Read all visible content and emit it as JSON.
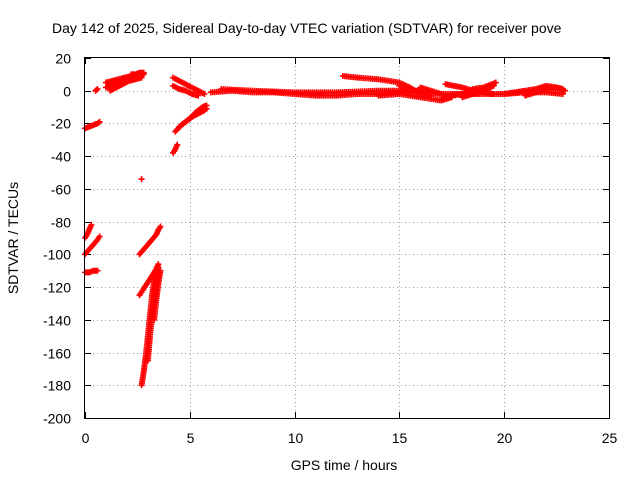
{
  "chart_data": {
    "type": "scatter",
    "title": "Day 142 of 2025, Sidereal Day-to-day VTEC variation (SDTVAR) for receiver pove",
    "xlabel": "GPS time / hours",
    "ylabel": "SDTVAR / TECUs",
    "xlim": [
      0,
      25
    ],
    "ylim": [
      -200,
      20
    ],
    "x_ticks": [
      0,
      5,
      10,
      15,
      20,
      25
    ],
    "y_ticks": [
      20,
      0,
      -20,
      -40,
      -60,
      -80,
      -100,
      -120,
      -140,
      -160,
      -180,
      -200
    ],
    "grid": true,
    "marker": "plus",
    "color": "#ff0000",
    "series": [
      {
        "segments": [
          [
            [
              0.0,
              -23
            ],
            [
              0.2,
              -22
            ],
            [
              0.4,
              -21
            ],
            [
              0.6,
              -20
            ],
            [
              0.7,
              -19
            ]
          ],
          [
            [
              0.0,
              -90
            ],
            [
              0.1,
              -88
            ],
            [
              0.2,
              -85
            ],
            [
              0.3,
              -82
            ]
          ],
          [
            [
              0.0,
              -100
            ],
            [
              0.2,
              -97
            ],
            [
              0.4,
              -94
            ],
            [
              0.6,
              -91
            ],
            [
              0.7,
              -89
            ]
          ],
          [
            [
              0.0,
              -111
            ],
            [
              0.2,
              -111
            ],
            [
              0.4,
              -110
            ],
            [
              0.6,
              -110
            ]
          ],
          [
            [
              0.5,
              0
            ],
            [
              0.6,
              1
            ]
          ],
          [
            [
              1.0,
              2
            ],
            [
              1.2,
              3
            ],
            [
              1.4,
              4
            ],
            [
              1.6,
              5
            ],
            [
              1.8,
              5
            ],
            [
              2.0,
              6
            ],
            [
              2.2,
              7
            ],
            [
              2.4,
              8
            ],
            [
              2.6,
              9
            ],
            [
              2.8,
              10
            ]
          ],
          [
            [
              1.0,
              5
            ],
            [
              1.3,
              6
            ],
            [
              1.6,
              7
            ],
            [
              1.9,
              8
            ],
            [
              2.2,
              9
            ],
            [
              2.5,
              10
            ],
            [
              2.8,
              11
            ]
          ],
          [
            [
              1.2,
              0
            ],
            [
              1.5,
              2
            ],
            [
              1.8,
              4
            ],
            [
              2.1,
              6
            ],
            [
              2.4,
              7
            ],
            [
              2.7,
              8
            ]
          ],
          [
            [
              2.2,
              10
            ],
            [
              2.4,
              10
            ],
            [
              2.6,
              11
            ],
            [
              2.8,
              11
            ]
          ],
          [
            [
              2.7,
              -54
            ]
          ],
          [
            [
              2.6,
              -100
            ],
            [
              2.8,
              -97
            ],
            [
              3.0,
              -94
            ],
            [
              3.2,
              -91
            ],
            [
              3.4,
              -88
            ],
            [
              3.5,
              -85
            ],
            [
              3.6,
              -83
            ]
          ],
          [
            [
              2.6,
              -125
            ],
            [
              2.8,
              -121
            ],
            [
              3.0,
              -117
            ],
            [
              3.2,
              -113
            ],
            [
              3.4,
              -109
            ],
            [
              3.5,
              -106
            ]
          ],
          [
            [
              2.7,
              -180
            ],
            [
              2.8,
              -172
            ],
            [
              2.9,
              -162
            ],
            [
              3.0,
              -150
            ],
            [
              3.1,
              -137
            ],
            [
              3.2,
              -125
            ],
            [
              3.3,
              -116
            ],
            [
              3.4,
              -110
            ]
          ],
          [
            [
              3.0,
              -165
            ],
            [
              3.1,
              -150
            ],
            [
              3.2,
              -138
            ],
            [
              3.3,
              -125
            ],
            [
              3.4,
              -115
            ],
            [
              3.5,
              -108
            ]
          ],
          [
            [
              3.3,
              -140
            ],
            [
              3.4,
              -128
            ],
            [
              3.5,
              -118
            ],
            [
              3.6,
              -110
            ]
          ],
          [
            [
              4.2,
              8
            ],
            [
              4.5,
              6
            ],
            [
              4.8,
              4
            ],
            [
              5.1,
              2
            ],
            [
              5.4,
              0
            ],
            [
              5.7,
              -2
            ]
          ],
          [
            [
              4.2,
              3
            ],
            [
              4.5,
              1
            ],
            [
              4.8,
              0
            ],
            [
              5.1,
              -2
            ],
            [
              5.4,
              -3
            ]
          ],
          [
            [
              4.2,
              -38
            ],
            [
              4.3,
              -36
            ],
            [
              4.4,
              -33
            ]
          ],
          [
            [
              4.3,
              -25
            ],
            [
              4.6,
              -21
            ],
            [
              4.9,
              -18
            ],
            [
              5.2,
              -15
            ],
            [
              5.5,
              -13
            ],
            [
              5.8,
              -11
            ]
          ],
          [
            [
              4.5,
              -22
            ],
            [
              4.8,
              -19
            ],
            [
              5.1,
              -16
            ],
            [
              5.4,
              -14
            ],
            [
              5.7,
              -12
            ]
          ],
          [
            [
              5.0,
              -17
            ],
            [
              5.3,
              -13
            ],
            [
              5.6,
              -10
            ],
            [
              5.8,
              -9
            ]
          ],
          [
            [
              6.0,
              -1
            ],
            [
              7.0,
              0
            ],
            [
              8.0,
              -1
            ],
            [
              9.0,
              -1
            ],
            [
              10.0,
              -2
            ],
            [
              11.0,
              -3
            ],
            [
              12.0,
              -3
            ],
            [
              13.0,
              -2
            ],
            [
              14.0,
              -2
            ],
            [
              15.0,
              -1
            ],
            [
              16.0,
              -1
            ],
            [
              17.0,
              -2
            ],
            [
              18.0,
              -2
            ],
            [
              19.0,
              -2
            ],
            [
              20.0,
              -2
            ],
            [
              21.0,
              -1
            ],
            [
              22.0,
              -1
            ],
            [
              22.8,
              -2
            ]
          ],
          [
            [
              6.5,
              1
            ],
            [
              8.0,
              0
            ],
            [
              10.0,
              -1
            ],
            [
              12.0,
              -1
            ],
            [
              14.0,
              0
            ],
            [
              16.0,
              0
            ]
          ],
          [
            [
              12.3,
              9
            ],
            [
              13.0,
              8
            ],
            [
              14.0,
              7
            ],
            [
              15.0,
              5
            ],
            [
              15.5,
              2
            ],
            [
              16.0,
              -2
            ]
          ],
          [
            [
              14.0,
              -3
            ],
            [
              15.0,
              -2
            ],
            [
              16.0,
              -4
            ],
            [
              17.0,
              -6
            ],
            [
              17.5,
              -4
            ]
          ],
          [
            [
              15.0,
              3
            ],
            [
              15.5,
              1
            ],
            [
              16.0,
              -1
            ],
            [
              16.5,
              -3
            ]
          ],
          [
            [
              16.0,
              2
            ],
            [
              16.5,
              0
            ],
            [
              17.0,
              -2
            ]
          ],
          [
            [
              17.0,
              -5
            ],
            [
              17.5,
              -3
            ],
            [
              18.0,
              -2
            ],
            [
              18.5,
              1
            ],
            [
              19.0,
              2
            ],
            [
              19.6,
              5
            ]
          ],
          [
            [
              17.2,
              4
            ],
            [
              17.6,
              3
            ],
            [
              18.0,
              2
            ],
            [
              18.5,
              0
            ],
            [
              19.0,
              -1
            ],
            [
              19.5,
              -2
            ]
          ],
          [
            [
              18.0,
              -4
            ],
            [
              18.5,
              -2
            ],
            [
              19.0,
              0
            ],
            [
              19.5,
              3
            ]
          ],
          [
            [
              20.0,
              -2
            ],
            [
              20.5,
              -1
            ],
            [
              21.0,
              0
            ],
            [
              21.5,
              1
            ],
            [
              22.0,
              3
            ],
            [
              22.5,
              2
            ],
            [
              22.9,
              0
            ]
          ],
          [
            [
              21.0,
              -3
            ],
            [
              21.5,
              -1
            ],
            [
              22.0,
              1
            ],
            [
              22.5,
              2
            ],
            [
              22.8,
              1
            ]
          ]
        ]
      }
    ]
  }
}
